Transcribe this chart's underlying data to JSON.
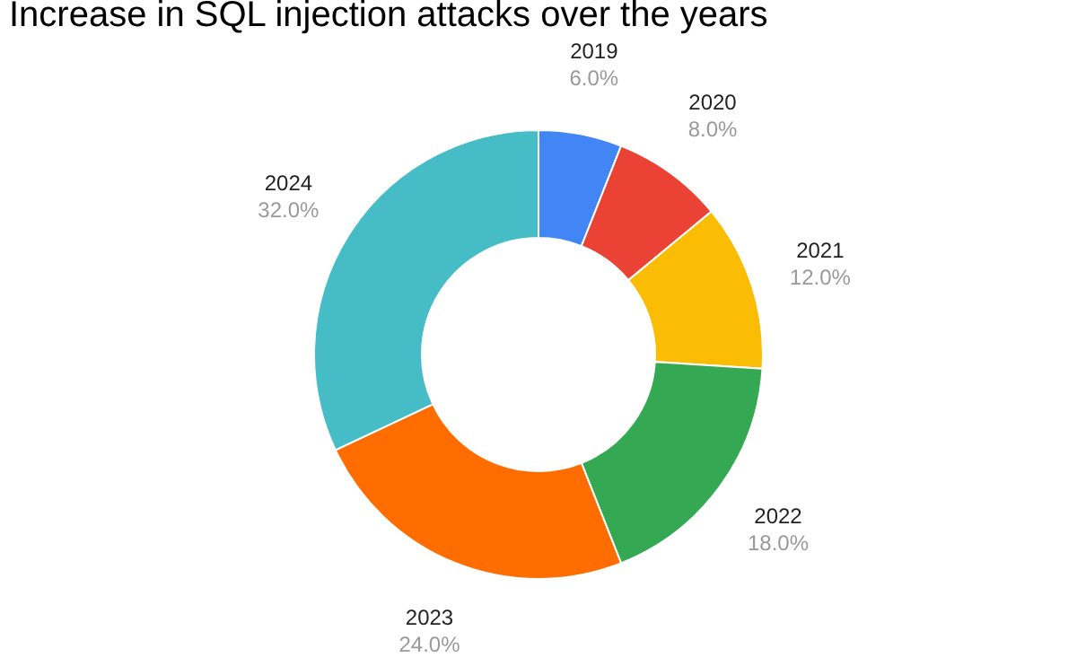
{
  "chart_data": {
    "type": "donut",
    "title": "Increase in SQL injection attacks over the years",
    "categories": [
      "2019",
      "2020",
      "2021",
      "2022",
      "2023",
      "2024"
    ],
    "values": [
      6,
      8,
      12,
      18,
      24,
      32
    ],
    "value_labels": [
      "6.0%",
      "8.0%",
      "12.0%",
      "18.0%",
      "24.0%",
      "32.0%"
    ],
    "colors": [
      "#4285f4",
      "#ea4335",
      "#fbbc04",
      "#34a853",
      "#ff6d01",
      "#46bdc6"
    ],
    "legend": false
  }
}
